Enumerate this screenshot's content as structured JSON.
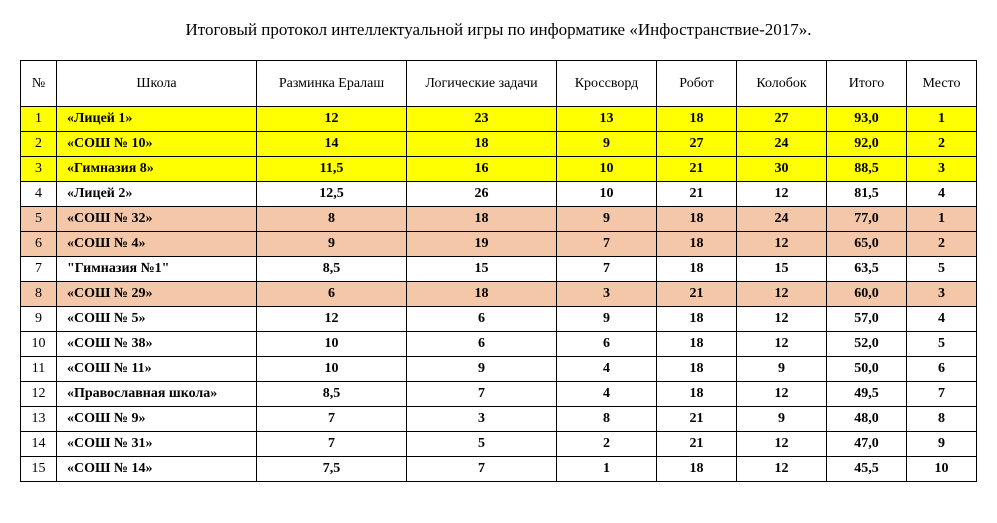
{
  "title": "Итоговый протокол интеллектуальной игры по информатике «Инфостранствие-2017».",
  "colors": {
    "yellow": "#ffff00",
    "peach": "#f4c7a8",
    "white": "#ffffff"
  },
  "columns": [
    "№",
    "Школа",
    "Разминка Ералаш",
    "Логические задачи",
    "Кроссворд",
    "Робот",
    "Колобок",
    "Итого",
    "Место"
  ],
  "rows": [
    {
      "num": "1",
      "school": "«Лицей 1»",
      "c1": "12",
      "c2": "23",
      "c3": "13",
      "c4": "18",
      "c5": "27",
      "total": "93,0",
      "place": "1",
      "bg": "yellow"
    },
    {
      "num": "2",
      "school": "«СОШ № 10»",
      "c1": "14",
      "c2": "18",
      "c3": "9",
      "c4": "27",
      "c5": "24",
      "total": "92,0",
      "place": "2",
      "bg": "yellow"
    },
    {
      "num": "3",
      "school": "«Гимназия 8»",
      "c1": "11,5",
      "c2": "16",
      "c3": "10",
      "c4": "21",
      "c5": "30",
      "total": "88,5",
      "place": "3",
      "bg": "yellow"
    },
    {
      "num": "4",
      "school": "«Лицей 2»",
      "c1": "12,5",
      "c2": "26",
      "c3": "10",
      "c4": "21",
      "c5": "12",
      "total": "81,5",
      "place": "4",
      "bg": "white"
    },
    {
      "num": "5",
      "school": "«СОШ № 32»",
      "c1": "8",
      "c2": "18",
      "c3": "9",
      "c4": "18",
      "c5": "24",
      "total": "77,0",
      "place": "1",
      "bg": "peach"
    },
    {
      "num": "6",
      "school": "«СОШ № 4»",
      "c1": "9",
      "c2": "19",
      "c3": "7",
      "c4": "18",
      "c5": "12",
      "total": "65,0",
      "place": "2",
      "bg": "peach"
    },
    {
      "num": "7",
      "school": "\"Гимназия №1\"",
      "c1": "8,5",
      "c2": "15",
      "c3": "7",
      "c4": "18",
      "c5": "15",
      "total": "63,5",
      "place": "5",
      "bg": "white"
    },
    {
      "num": "8",
      "school": "«СОШ № 29»",
      "c1": "6",
      "c2": "18",
      "c3": "3",
      "c4": "21",
      "c5": "12",
      "total": "60,0",
      "place": "3",
      "bg": "peach"
    },
    {
      "num": "9",
      "school": "«СОШ № 5»",
      "c1": "12",
      "c2": "6",
      "c3": "9",
      "c4": "18",
      "c5": "12",
      "total": "57,0",
      "place": "4",
      "bg": "white"
    },
    {
      "num": "10",
      "school": "«СОШ № 38»",
      "c1": "10",
      "c2": "6",
      "c3": "6",
      "c4": "18",
      "c5": "12",
      "total": "52,0",
      "place": "5",
      "bg": "white"
    },
    {
      "num": "11",
      "school": "«СОШ № 11»",
      "c1": "10",
      "c2": "9",
      "c3": "4",
      "c4": "18",
      "c5": "9",
      "total": "50,0",
      "place": "6",
      "bg": "white"
    },
    {
      "num": "12",
      "school": "«Православная школа»",
      "c1": "8,5",
      "c2": "7",
      "c3": "4",
      "c4": "18",
      "c5": "12",
      "total": "49,5",
      "place": "7",
      "bg": "white"
    },
    {
      "num": "13",
      "school": "«СОШ № 9»",
      "c1": "7",
      "c2": "3",
      "c3": "8",
      "c4": "21",
      "c5": "9",
      "total": "48,0",
      "place": "8",
      "bg": "white"
    },
    {
      "num": "14",
      "school": "«СОШ № 31»",
      "c1": "7",
      "c2": "5",
      "c3": "2",
      "c4": "21",
      "c5": "12",
      "total": "47,0",
      "place": "9",
      "bg": "white"
    },
    {
      "num": "15",
      "school": "«СОШ № 14»",
      "c1": "7,5",
      "c2": "7",
      "c3": "1",
      "c4": "18",
      "c5": "12",
      "total": "45,5",
      "place": "10",
      "bg": "white"
    }
  ]
}
